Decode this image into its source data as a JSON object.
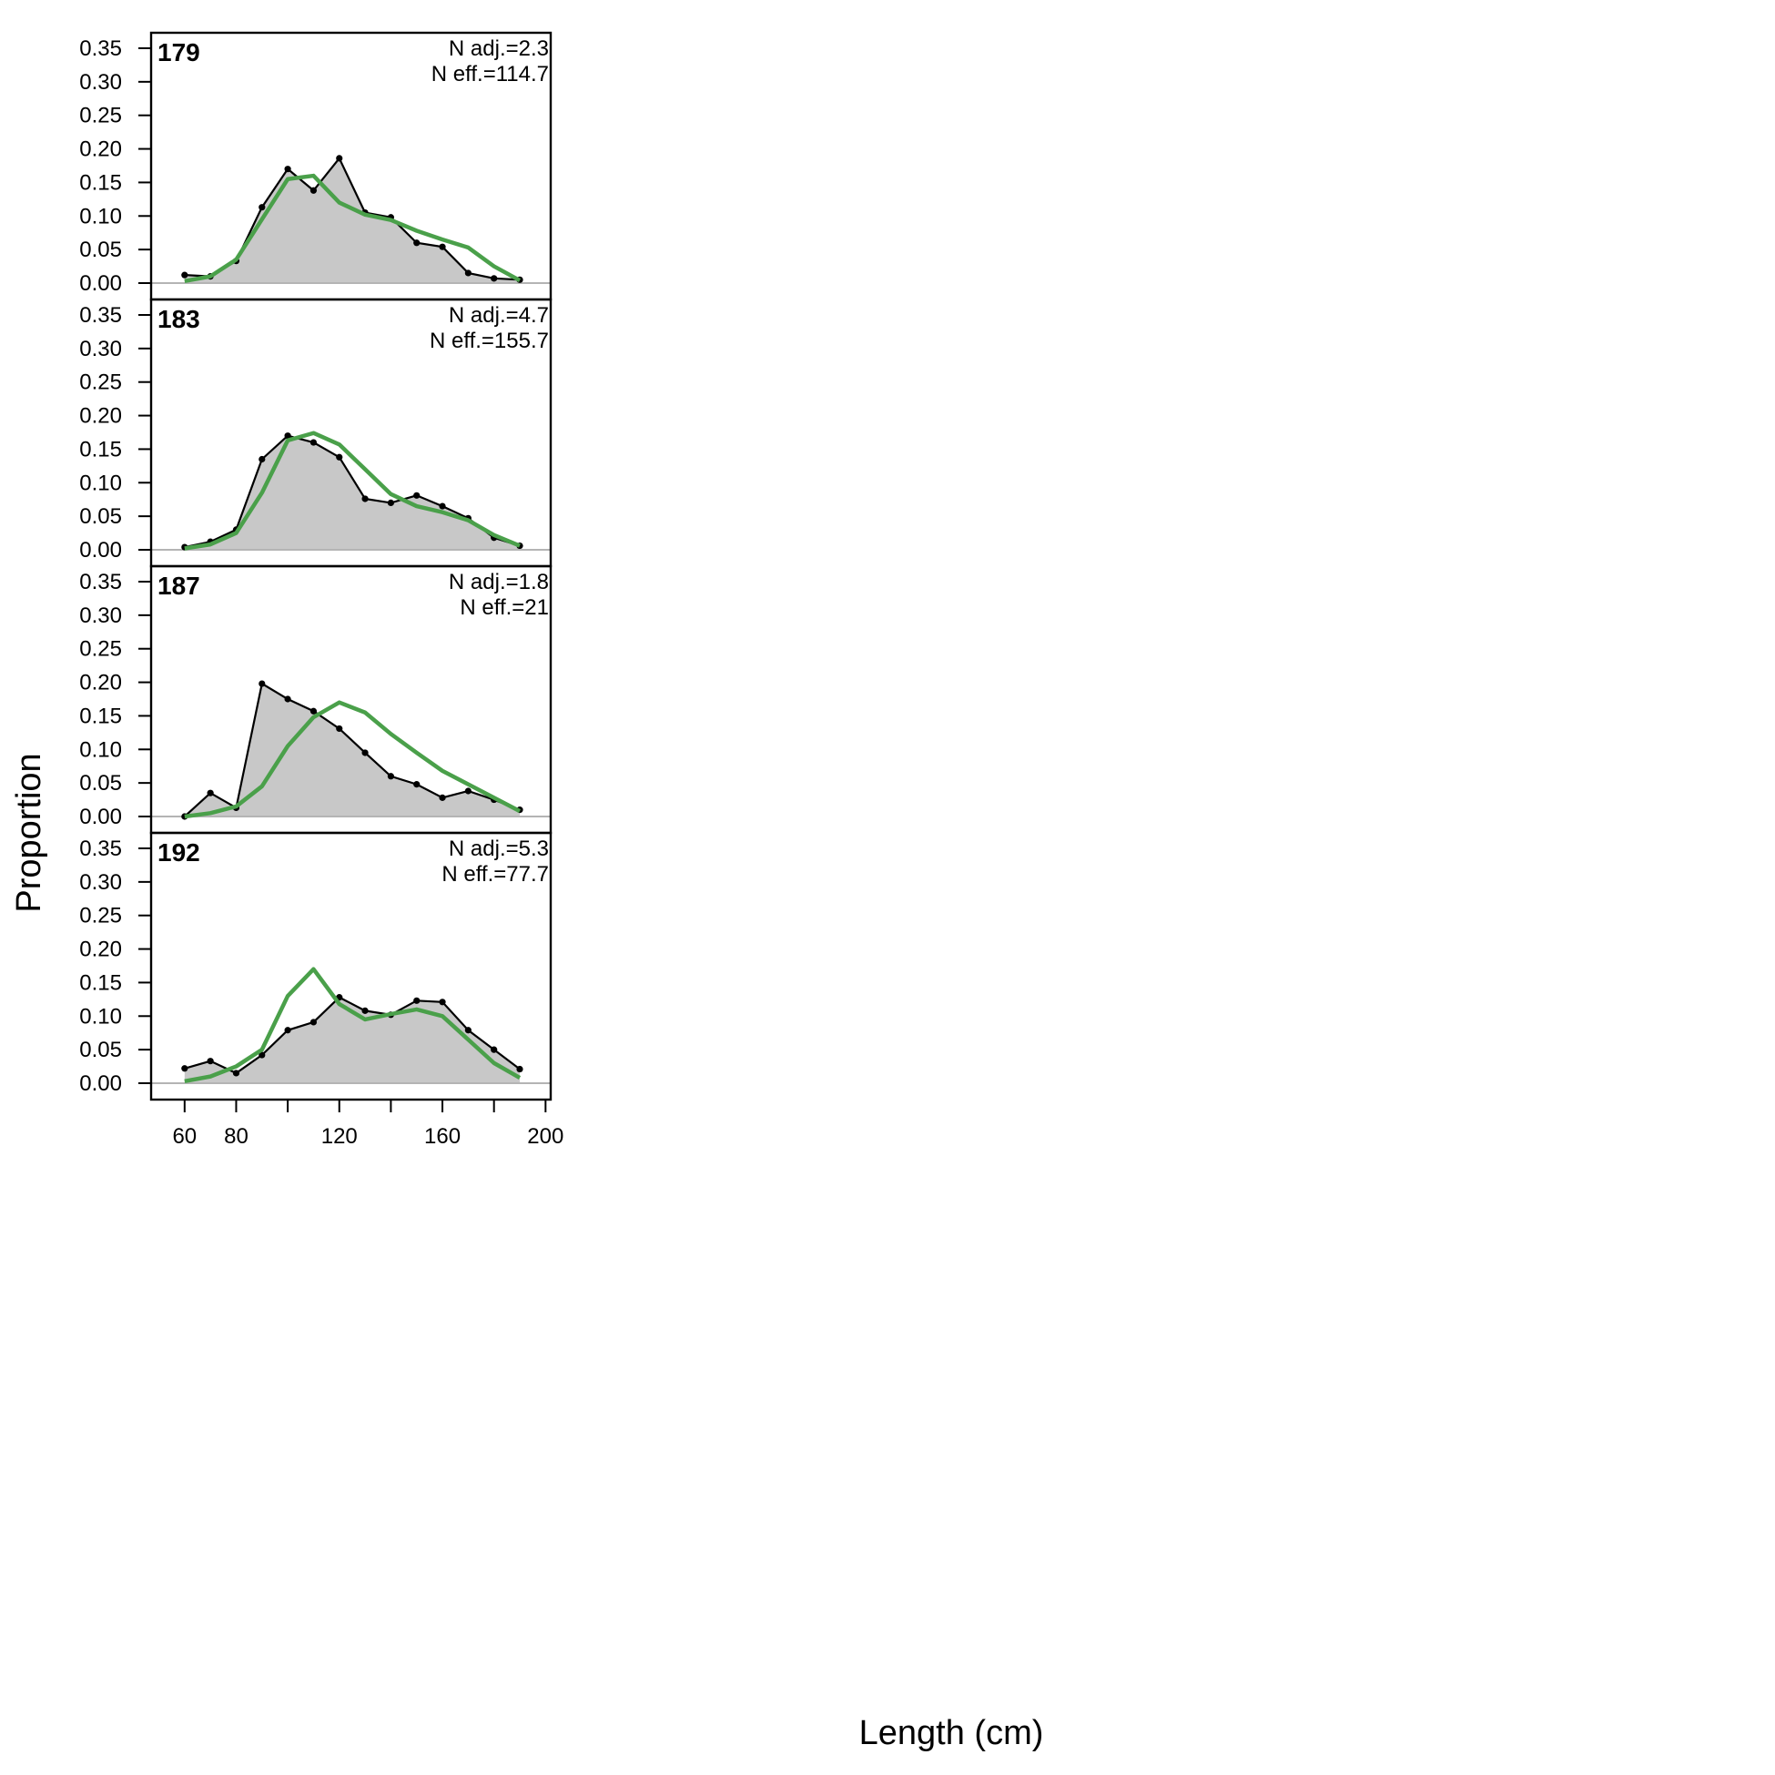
{
  "chart_data": {
    "type": "area",
    "xlabel": "Length (cm)",
    "ylabel": "Proportion",
    "xlim": [
      47,
      202
    ],
    "ylim": [
      0,
      0.35
    ],
    "xticks": [
      60,
      80,
      100,
      120,
      140,
      160,
      180,
      200
    ],
    "xtick_labels": [
      "60",
      "80",
      "",
      "120",
      "",
      "160",
      "",
      "200"
    ],
    "yticks": [
      0,
      0.05,
      0.1,
      0.15,
      0.2,
      0.25,
      0.3,
      0.35
    ],
    "ytick_labels": [
      "0.00",
      "0.05",
      "0.10",
      "0.15",
      "0.20",
      "0.25",
      "0.30",
      "0.35"
    ],
    "colors": {
      "observed_fill": "#c8c8c8",
      "observed_line": "#000000",
      "expected_line": "#4aa04a",
      "zero_line": "#b4b4b4"
    },
    "panels": [
      {
        "label": "179",
        "n_adj": "N adj.=2.3",
        "n_eff": "N eff.=114.7",
        "x": [
          60,
          70,
          80,
          90,
          100,
          110,
          120,
          130,
          140,
          150,
          160,
          170,
          180,
          190
        ],
        "observed": [
          0.012,
          0.01,
          0.033,
          0.113,
          0.17,
          0.138,
          0.186,
          0.105,
          0.098,
          0.06,
          0.054,
          0.015,
          0.007,
          0.005
        ],
        "expected": [
          0.003,
          0.01,
          0.035,
          0.095,
          0.155,
          0.16,
          0.12,
          0.102,
          0.094,
          0.078,
          0.065,
          0.053,
          0.025,
          0.004
        ]
      },
      {
        "label": "183",
        "n_adj": "N adj.=4.7",
        "n_eff": "N eff.=155.7",
        "x": [
          60,
          70,
          80,
          90,
          100,
          110,
          120,
          130,
          140,
          150,
          160,
          170,
          180,
          190
        ],
        "observed": [
          0.004,
          0.012,
          0.03,
          0.135,
          0.17,
          0.16,
          0.138,
          0.076,
          0.07,
          0.081,
          0.065,
          0.047,
          0.018,
          0.006
        ],
        "expected": [
          0.002,
          0.008,
          0.025,
          0.085,
          0.163,
          0.174,
          0.157,
          0.12,
          0.083,
          0.065,
          0.056,
          0.044,
          0.022,
          0.006
        ]
      },
      {
        "label": "187",
        "n_adj": "N adj.=1.8",
        "n_eff": "N eff.=21",
        "x": [
          60,
          70,
          80,
          90,
          100,
          110,
          120,
          130,
          140,
          150,
          160,
          170,
          180,
          190
        ],
        "observed": [
          0.0,
          0.035,
          0.013,
          0.198,
          0.175,
          0.157,
          0.131,
          0.095,
          0.06,
          0.048,
          0.028,
          0.038,
          0.025,
          0.01
        ],
        "expected": [
          0.0,
          0.005,
          0.015,
          0.045,
          0.105,
          0.148,
          0.17,
          0.155,
          0.123,
          0.095,
          0.068,
          0.048,
          0.028,
          0.008
        ]
      },
      {
        "label": "192",
        "n_adj": "N adj.=5.3",
        "n_eff": "N eff.=77.7",
        "x": [
          60,
          70,
          80,
          90,
          100,
          110,
          120,
          130,
          140,
          150,
          160,
          170,
          180,
          190
        ],
        "observed": [
          0.022,
          0.033,
          0.015,
          0.042,
          0.079,
          0.091,
          0.128,
          0.108,
          0.102,
          0.123,
          0.121,
          0.079,
          0.05,
          0.021
        ],
        "expected": [
          0.003,
          0.01,
          0.025,
          0.05,
          0.13,
          0.17,
          0.118,
          0.095,
          0.103,
          0.11,
          0.1,
          0.065,
          0.03,
          0.008
        ]
      }
    ]
  }
}
